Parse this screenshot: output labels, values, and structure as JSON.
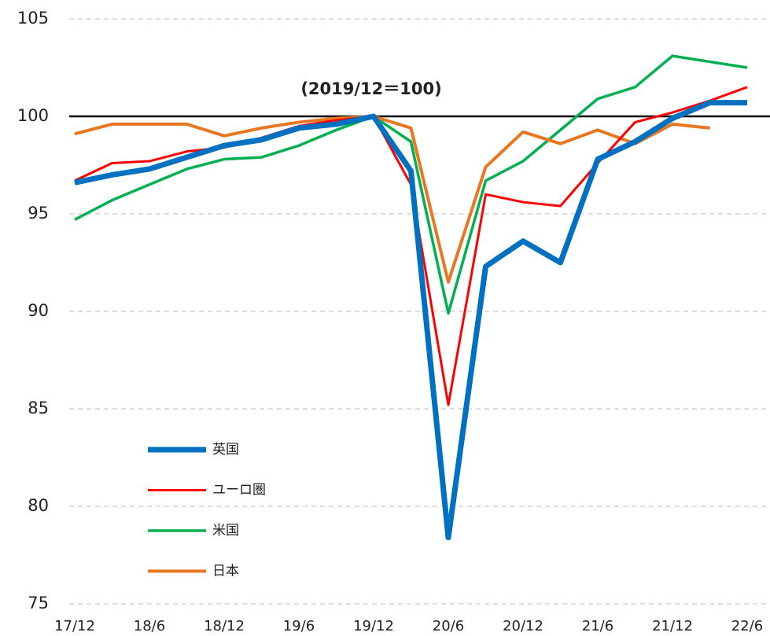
{
  "chart_data": {
    "type": "line",
    "annotation": "(2019/12＝100)",
    "categories": [
      "17/12",
      null,
      "18/6",
      null,
      "18/12",
      null,
      "19/6",
      null,
      "19/12",
      null,
      "20/6",
      null,
      "20/12",
      null,
      "21/6",
      null,
      "21/12",
      null,
      "22/6"
    ],
    "series": [
      {
        "name": "英国",
        "color": "#0070c0",
        "line_width": 7,
        "values": [
          96.6,
          97.0,
          97.3,
          97.9,
          98.5,
          98.8,
          99.4,
          99.6,
          100,
          97.2,
          78.4,
          92.3,
          93.6,
          92.5,
          97.8,
          98.7,
          99.9,
          100.7,
          100.7
        ]
      },
      {
        "name": "ユーロ圏",
        "color": "#ff0000",
        "line_width": 3,
        "values": [
          96.7,
          97.6,
          97.7,
          98.2,
          98.4,
          98.9,
          99.5,
          99.8,
          100,
          96.5,
          85.2,
          96.0,
          95.6,
          95.4,
          97.6,
          99.7,
          100.2,
          100.8,
          101.5
        ]
      },
      {
        "name": "米国",
        "color": "#00b050",
        "line_width": 3.5,
        "values": [
          94.7,
          95.7,
          96.5,
          97.3,
          97.8,
          97.9,
          98.5,
          99.3,
          100,
          98.7,
          89.9,
          96.7,
          97.7,
          99.3,
          100.9,
          101.5,
          103.1,
          102.8,
          102.5
        ]
      },
      {
        "name": "日本",
        "color": "#e87722",
        "line_width": 4,
        "values": [
          99.1,
          99.6,
          99.6,
          99.6,
          99.0,
          99.4,
          99.7,
          99.9,
          100,
          99.4,
          91.5,
          97.4,
          99.2,
          98.6,
          99.3,
          98.6,
          99.6,
          99.4,
          null
        ]
      }
    ],
    "ylim": [
      75,
      105
    ],
    "yticks": [
      75,
      80,
      85,
      90,
      95,
      100,
      105
    ],
    "reference_line": 100,
    "grid": true,
    "legend": "lower left"
  }
}
